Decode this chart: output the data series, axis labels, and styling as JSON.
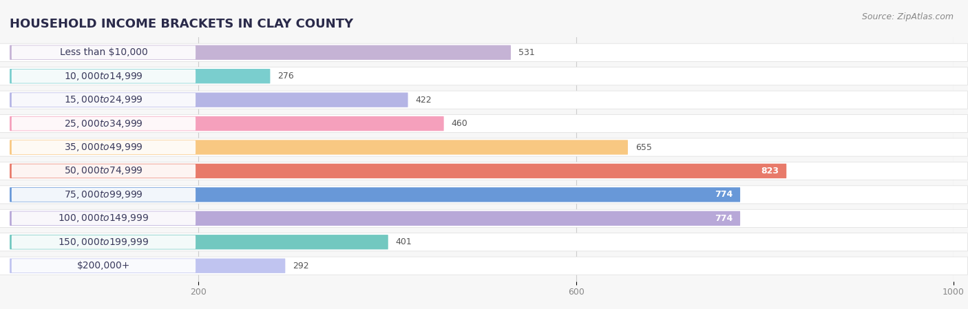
{
  "title": "HOUSEHOLD INCOME BRACKETS IN CLAY COUNTY",
  "source": "Source: ZipAtlas.com",
  "categories": [
    "Less than $10,000",
    "$10,000 to $14,999",
    "$15,000 to $24,999",
    "$25,000 to $34,999",
    "$35,000 to $49,999",
    "$50,000 to $74,999",
    "$75,000 to $99,999",
    "$100,000 to $149,999",
    "$150,000 to $199,999",
    "$200,000+"
  ],
  "values": [
    531,
    276,
    422,
    460,
    655,
    823,
    774,
    774,
    401,
    292
  ],
  "bar_colors": [
    "#c5b3d5",
    "#7acece",
    "#b5b5e5",
    "#f5a0bc",
    "#f8c882",
    "#e87a6a",
    "#6898d8",
    "#b8a8d8",
    "#72c8c0",
    "#c0c4f0"
  ],
  "xlim": [
    0,
    1000
  ],
  "xticks": [
    200,
    600,
    1000
  ],
  "bar_height": 0.62,
  "label_inside_threshold": 700,
  "background_color": "#f7f7f7",
  "bar_bg_color": "#ececec",
  "row_bg_color": "#ffffff",
  "title_fontsize": 13,
  "source_fontsize": 9,
  "label_fontsize": 9,
  "tick_fontsize": 9,
  "category_fontsize": 10
}
